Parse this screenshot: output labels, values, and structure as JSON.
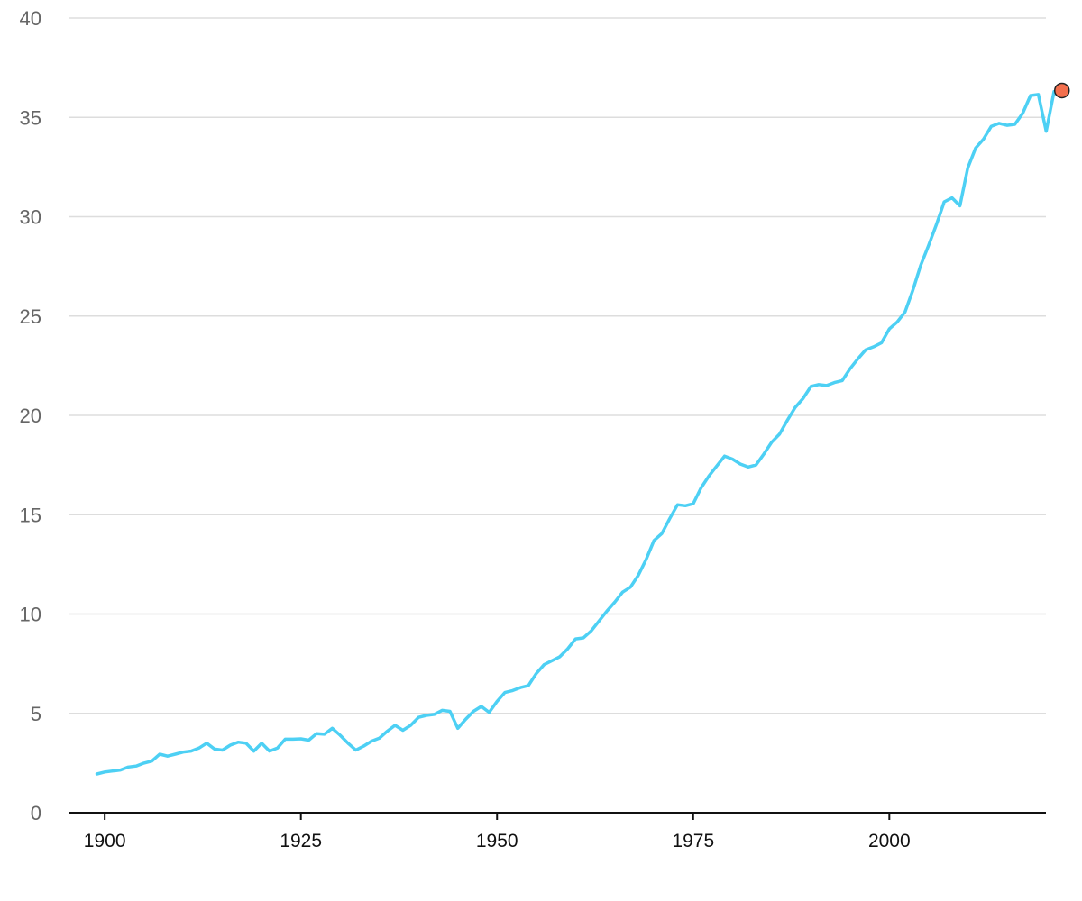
{
  "chart_data": {
    "type": "line",
    "title": "",
    "xlabel": "",
    "ylabel": "",
    "xlim": [
      1899,
      2022
    ],
    "ylim": [
      0,
      40
    ],
    "grid": true,
    "legend": "none",
    "y_ticks": [
      "0",
      "5",
      "10",
      "15",
      "20",
      "25",
      "30",
      "35",
      "40"
    ],
    "x_ticks": [
      "1900",
      "1925",
      "1950",
      "1975",
      "2000"
    ],
    "colors": {
      "line": "#4dd0f4",
      "marker": "#f36f4d",
      "marker_stroke": "#222222"
    },
    "series": [
      {
        "x": [
          1899,
          1900,
          1901,
          1902,
          1903,
          1904,
          1905,
          1906,
          1907,
          1908,
          1909,
          1910,
          1911,
          1912,
          1913,
          1914,
          1915,
          1916,
          1917,
          1918,
          1919,
          1920,
          1921,
          1922,
          1923,
          1924,
          1925,
          1926,
          1927,
          1928,
          1929,
          1930,
          1931,
          1932,
          1933,
          1934,
          1935,
          1936,
          1937,
          1938,
          1939,
          1940,
          1941,
          1942,
          1943,
          1944,
          1945,
          1946,
          1947,
          1948,
          1949,
          1950,
          1951,
          1952,
          1953,
          1954,
          1955,
          1956,
          1957,
          1958,
          1959,
          1960,
          1961,
          1962,
          1963,
          1964,
          1965,
          1966,
          1967,
          1968,
          1969,
          1970,
          1971,
          1972,
          1973,
          1974,
          1975,
          1976,
          1977,
          1978,
          1979,
          1980,
          1981,
          1982,
          1983,
          1984,
          1985,
          1986,
          1987,
          1988,
          1989,
          1990,
          1991,
          1992,
          1993,
          1994,
          1995,
          1996,
          1997,
          1998,
          1999,
          2000,
          2001,
          2002,
          2003,
          2004,
          2005,
          2006,
          2007,
          2008,
          2009,
          2010,
          2011,
          2012,
          2013,
          2014,
          2015,
          2016,
          2017,
          2018,
          2019,
          2020,
          2021
        ],
        "values": [
          1.95,
          2.05,
          2.1,
          2.15,
          2.3,
          2.35,
          2.5,
          2.6,
          2.95,
          2.85,
          2.95,
          3.05,
          3.1,
          3.25,
          3.5,
          3.2,
          3.15,
          3.4,
          3.55,
          3.5,
          3.1,
          3.5,
          3.1,
          3.25,
          3.7,
          3.7,
          3.72,
          3.65,
          3.98,
          3.95,
          4.25,
          3.9,
          3.5,
          3.15,
          3.35,
          3.6,
          3.75,
          4.1,
          4.4,
          4.15,
          4.4,
          4.8,
          4.9,
          4.95,
          5.15,
          5.1,
          4.25,
          4.7,
          5.1,
          5.35,
          5.05,
          5.6,
          6.05,
          6.15,
          6.3,
          6.4,
          7.0,
          7.45,
          7.65,
          7.85,
          8.25,
          8.75,
          8.8,
          9.15,
          9.65,
          10.15,
          10.6,
          11.1,
          11.35,
          11.95,
          12.75,
          13.7,
          14.05,
          14.8,
          15.5,
          15.45,
          15.55,
          16.35,
          16.95,
          17.45,
          17.95,
          17.8,
          17.55,
          17.4,
          17.5,
          18.05,
          18.65,
          19.05,
          19.75,
          20.4,
          20.85,
          21.45,
          21.55,
          21.5,
          21.65,
          21.75,
          22.35,
          22.85,
          23.3,
          23.45,
          23.65,
          24.35,
          24.7,
          25.2,
          26.3,
          27.55,
          28.55,
          29.6,
          30.75,
          30.95,
          30.55,
          32.45,
          33.45,
          33.9,
          34.55,
          34.7,
          34.6,
          34.65,
          35.2,
          36.1,
          36.15,
          34.3,
          36.3
        ]
      }
    ],
    "highlight_point": {
      "x": 2022,
      "y": 36.35
    }
  }
}
